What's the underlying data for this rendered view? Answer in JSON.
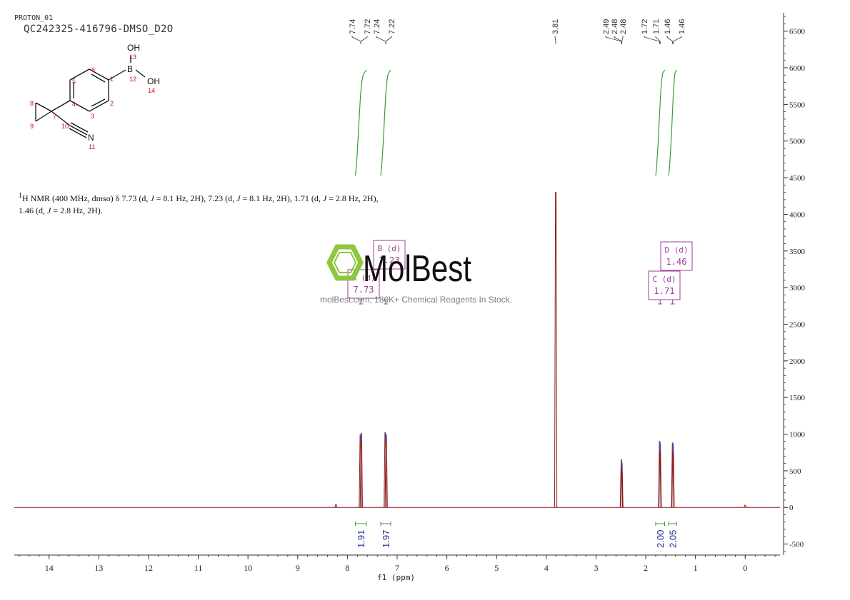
{
  "header": {
    "experiment": "PROTON_01",
    "sample": "QC242325-416796-DMSO_D2O"
  },
  "structure": {
    "atoms": {
      "oh13": "OH",
      "n13": "13",
      "b": "B",
      "n12": "12",
      "oh14": "OH",
      "n14": "14",
      "n1": "1",
      "n2": "2",
      "n3": "3",
      "n4": "4",
      "n5": "5",
      "n6": "6",
      "n7": "7",
      "n8": "8",
      "n9": "9",
      "n10": "10",
      "n": "N",
      "n11": "11"
    }
  },
  "summary": {
    "sup": "1",
    "text1a": "H NMR (400 MHz, dmso) δ 7.73 (d, ",
    "j": "J",
    "text1b": " = 8.1 Hz, 2H), 7.23 (d, ",
    "text1c": " = 8.1 Hz, 2H), 1.71 (d, ",
    "text1d": " = 2.8 Hz, 2H),",
    "text2a": "1.46 (d, ",
    "text2b": " = 2.8 Hz, 2H)."
  },
  "watermark": {
    "logo": "MolBest",
    "tagline": "molBest.com, 180K+ Chemical Reagents In Stock."
  },
  "multiplets": [
    {
      "label": "A (d)",
      "shift": "7.73",
      "ppm": 7.73
    },
    {
      "label": "B (d)",
      "shift": "7.23",
      "ppm": 7.23
    },
    {
      "label": "C (d)",
      "shift": "1.71",
      "ppm": 1.71
    },
    {
      "label": "D (d)",
      "shift": "1.46",
      "ppm": 1.46
    }
  ],
  "colors": {
    "spectrum": "#8b1a1a",
    "integral": "#3a9a3a",
    "multiplet_box": "#9b3d9b",
    "logo_green": "#8dc63f",
    "axis": "#333333"
  },
  "chart_data": {
    "type": "line",
    "title": "",
    "xlabel": "f1 (ppm)",
    "ylabel": "",
    "xlim": [
      14.7,
      -0.7
    ],
    "ylim": [
      -650,
      6750
    ],
    "x_ticks": [
      14,
      13,
      12,
      11,
      10,
      9,
      8,
      7,
      6,
      5,
      4,
      3,
      2,
      1,
      0
    ],
    "y_ticks": [
      6500,
      6000,
      5500,
      5000,
      4500,
      4000,
      3500,
      3000,
      2500,
      2000,
      1500,
      1000,
      500,
      0,
      -500
    ],
    "peaks": [
      {
        "ppm": 8.23,
        "height": 40
      },
      {
        "ppm": 7.74,
        "height": 990
      },
      {
        "ppm": 7.72,
        "height": 1010
      },
      {
        "ppm": 7.24,
        "height": 1020
      },
      {
        "ppm": 7.22,
        "height": 990
      },
      {
        "ppm": 3.81,
        "height": 4300
      },
      {
        "ppm": 2.49,
        "height": 650
      },
      {
        "ppm": 2.48,
        "height": 600
      },
      {
        "ppm": 1.72,
        "height": 900
      },
      {
        "ppm": 1.71,
        "height": 870
      },
      {
        "ppm": 1.46,
        "height": 880
      },
      {
        "ppm": 1.45,
        "height": 860
      },
      {
        "ppm": 0.0,
        "height": 30
      }
    ],
    "peak_labels": [
      "7.74",
      "7.72",
      "7.24",
      "7.22",
      "3.81",
      "2.49",
      "2.48",
      "2.48",
      "1.72",
      "1.71",
      "1.46",
      "1.46"
    ],
    "integrals": [
      {
        "from": 7.84,
        "to": 7.62,
        "value": "1.91"
      },
      {
        "from": 7.33,
        "to": 7.13,
        "value": "1.97"
      },
      {
        "from": 1.8,
        "to": 1.62,
        "value": "2.00"
      },
      {
        "from": 1.54,
        "to": 1.38,
        "value": "2.05"
      }
    ]
  }
}
